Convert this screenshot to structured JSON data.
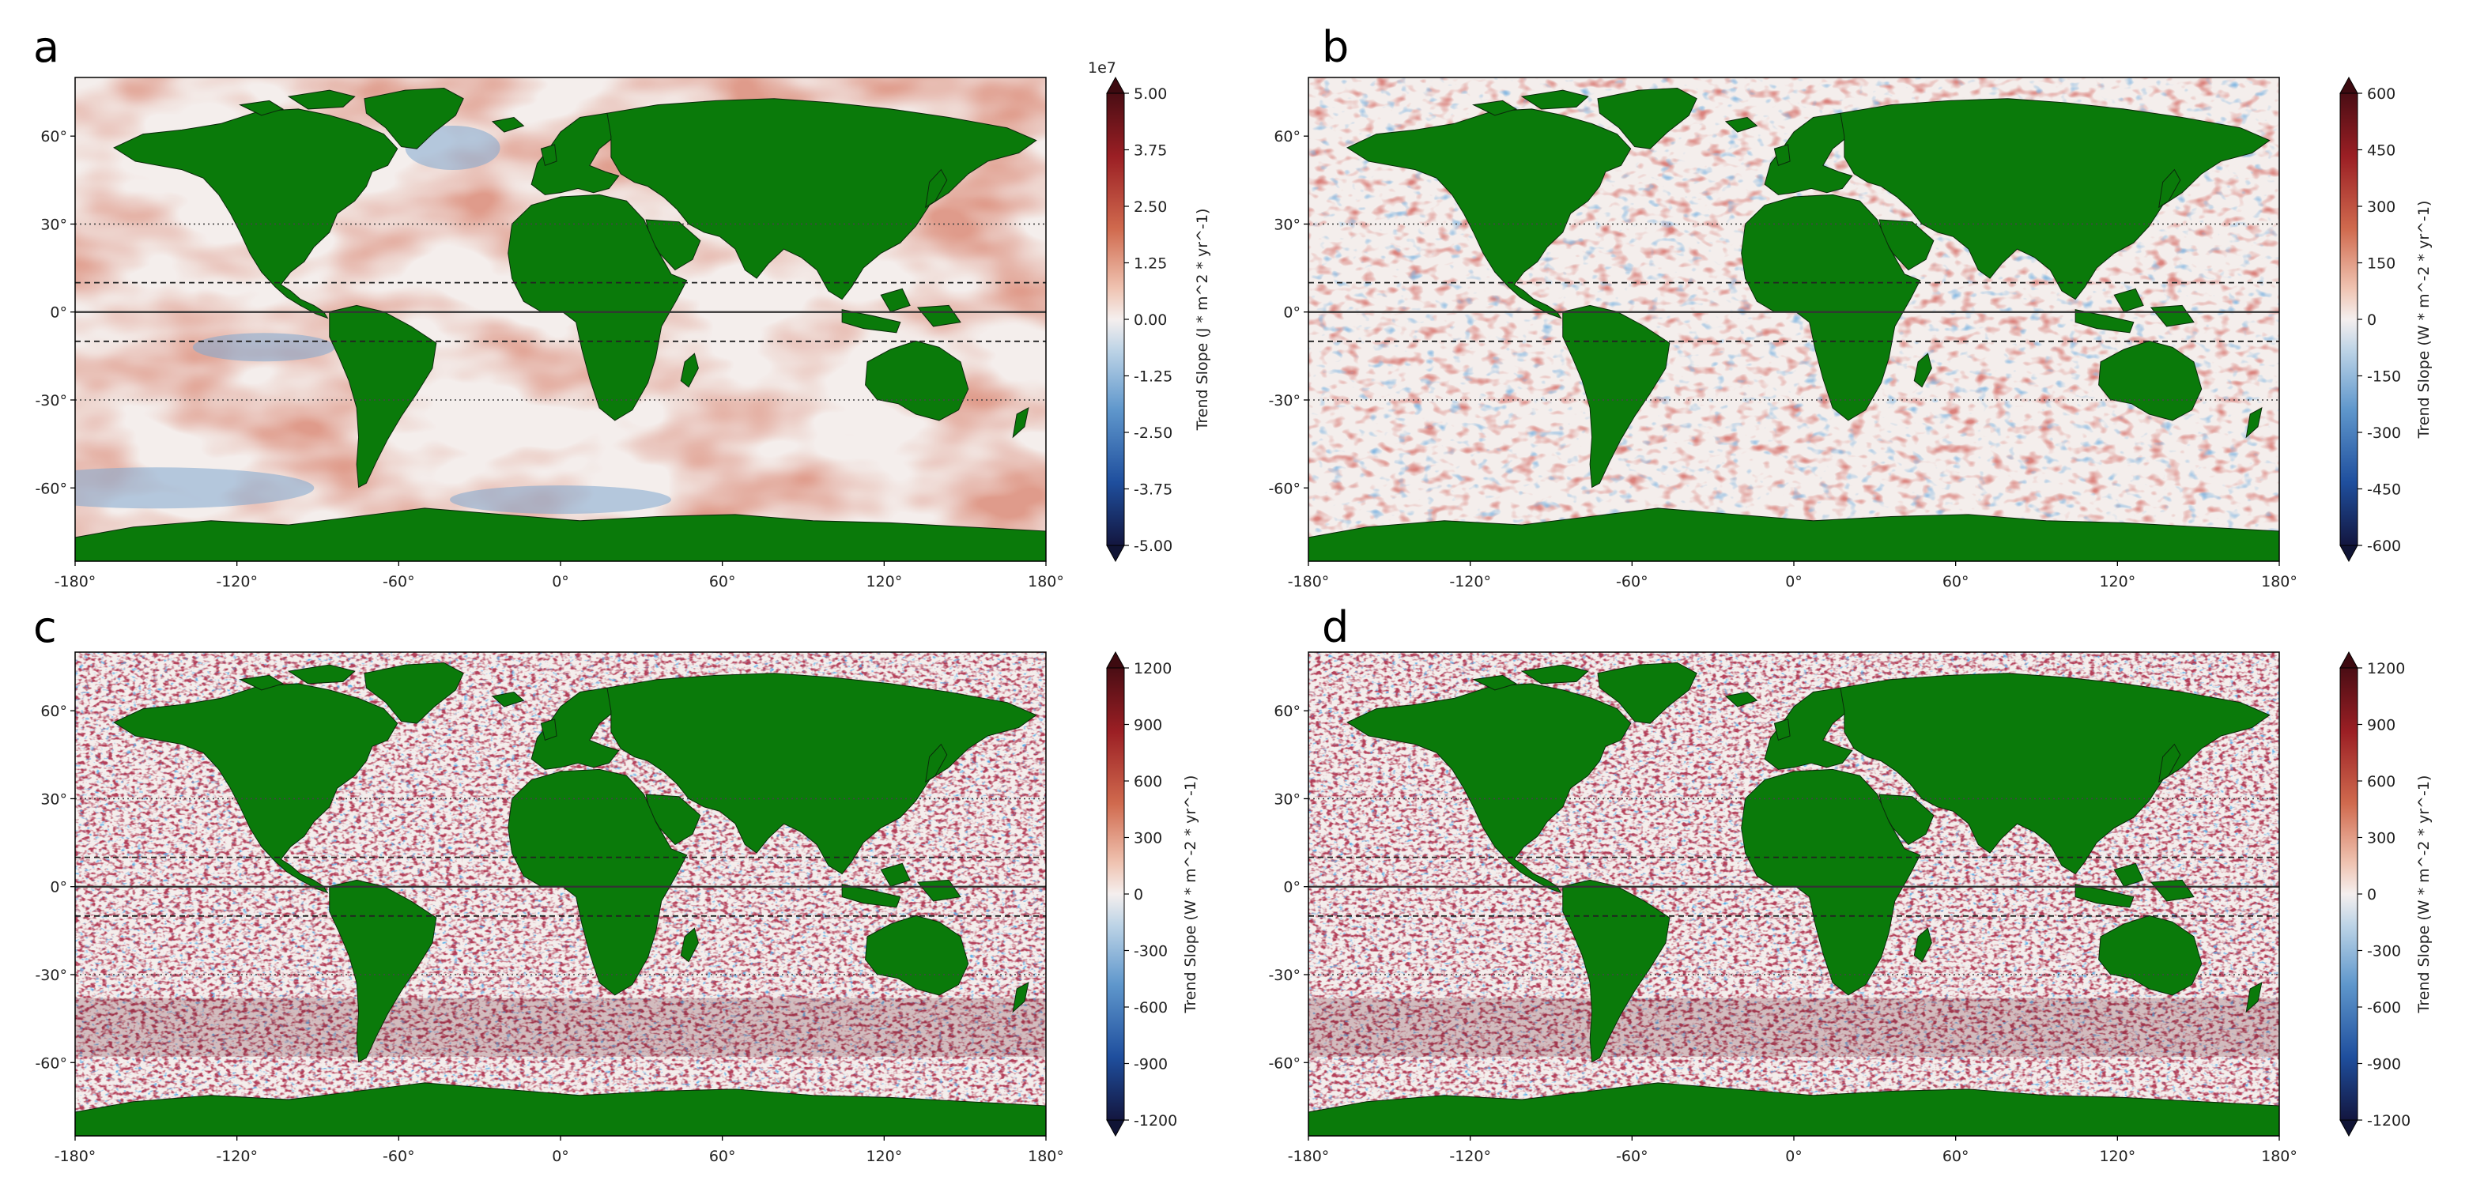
{
  "panels": [
    {
      "letter": "a",
      "lat_ticks": [
        "60°",
        "30°",
        "0°",
        "-30°",
        "-60°"
      ],
      "lon_ticks": [
        "-180°",
        "-120°",
        "-60°",
        "0°",
        "60°",
        "120°",
        "180°"
      ],
      "colorbar": {
        "multiplier": "1e7",
        "ticks": [
          "5.00",
          "3.75",
          "2.50",
          "1.25",
          "0.00",
          "-1.25",
          "-2.50",
          "-3.75",
          "-5.00"
        ],
        "tick_values": [
          5.0,
          3.75,
          2.5,
          1.25,
          0.0,
          -1.25,
          -2.5,
          -3.75,
          -5.0
        ],
        "range": [
          -5.0,
          5.0
        ],
        "label": "Trend Slope (J * m^2 * yr^-1)"
      }
    },
    {
      "letter": "b",
      "lat_ticks": [
        "60°",
        "30°",
        "0°",
        "-30°",
        "-60°"
      ],
      "lon_ticks": [
        "-180°",
        "-120°",
        "-60°",
        "0°",
        "60°",
        "120°",
        "180°"
      ],
      "colorbar": {
        "multiplier": "",
        "ticks": [
          "600",
          "450",
          "300",
          "150",
          "0",
          "-150",
          "-300",
          "-450",
          "-600"
        ],
        "tick_values": [
          600,
          450,
          300,
          150,
          0,
          -150,
          -300,
          -450,
          -600
        ],
        "range": [
          -600,
          600
        ],
        "label": "Trend Slope (W * m^-2 * yr^-1)"
      }
    },
    {
      "letter": "c",
      "lat_ticks": [
        "60°",
        "30°",
        "0°",
        "-30°",
        "-60°"
      ],
      "lon_ticks": [
        "-180°",
        "-120°",
        "-60°",
        "0°",
        "60°",
        "120°",
        "180°"
      ],
      "colorbar": {
        "multiplier": "",
        "ticks": [
          "1200",
          "900",
          "600",
          "300",
          "0",
          "-300",
          "-600",
          "-900",
          "-1200"
        ],
        "tick_values": [
          1200,
          900,
          600,
          300,
          0,
          -300,
          -600,
          -900,
          -1200
        ],
        "range": [
          -1200,
          1200
        ],
        "label": "Trend Slope (W * m^-2 * yr^-1)"
      }
    },
    {
      "letter": "d",
      "lat_ticks": [
        "60°",
        "30°",
        "0°",
        "-30°",
        "-60°"
      ],
      "lon_ticks": [
        "-180°",
        "-120°",
        "-60°",
        "0°",
        "60°",
        "120°",
        "180°"
      ],
      "colorbar": {
        "multiplier": "",
        "ticks": [
          "1200",
          "900",
          "600",
          "300",
          "0",
          "-300",
          "-600",
          "-900",
          "-1200"
        ],
        "tick_values": [
          1200,
          900,
          600,
          300,
          0,
          -300,
          -600,
          -900,
          -1200
        ],
        "range": [
          -1200,
          1200
        ],
        "label": "Trend Slope (W * m^-2 * yr^-1)"
      }
    }
  ],
  "reference_lines": {
    "solid": [
      0
    ],
    "dashed": [
      10,
      -10
    ],
    "dotted": [
      30,
      -30
    ]
  },
  "colors": {
    "land": "#0a7a0a",
    "coast": "#0b2a0b",
    "positive": "#c0492f",
    "negative": "#2b6cb8",
    "neutral": "#f4eeec"
  }
}
